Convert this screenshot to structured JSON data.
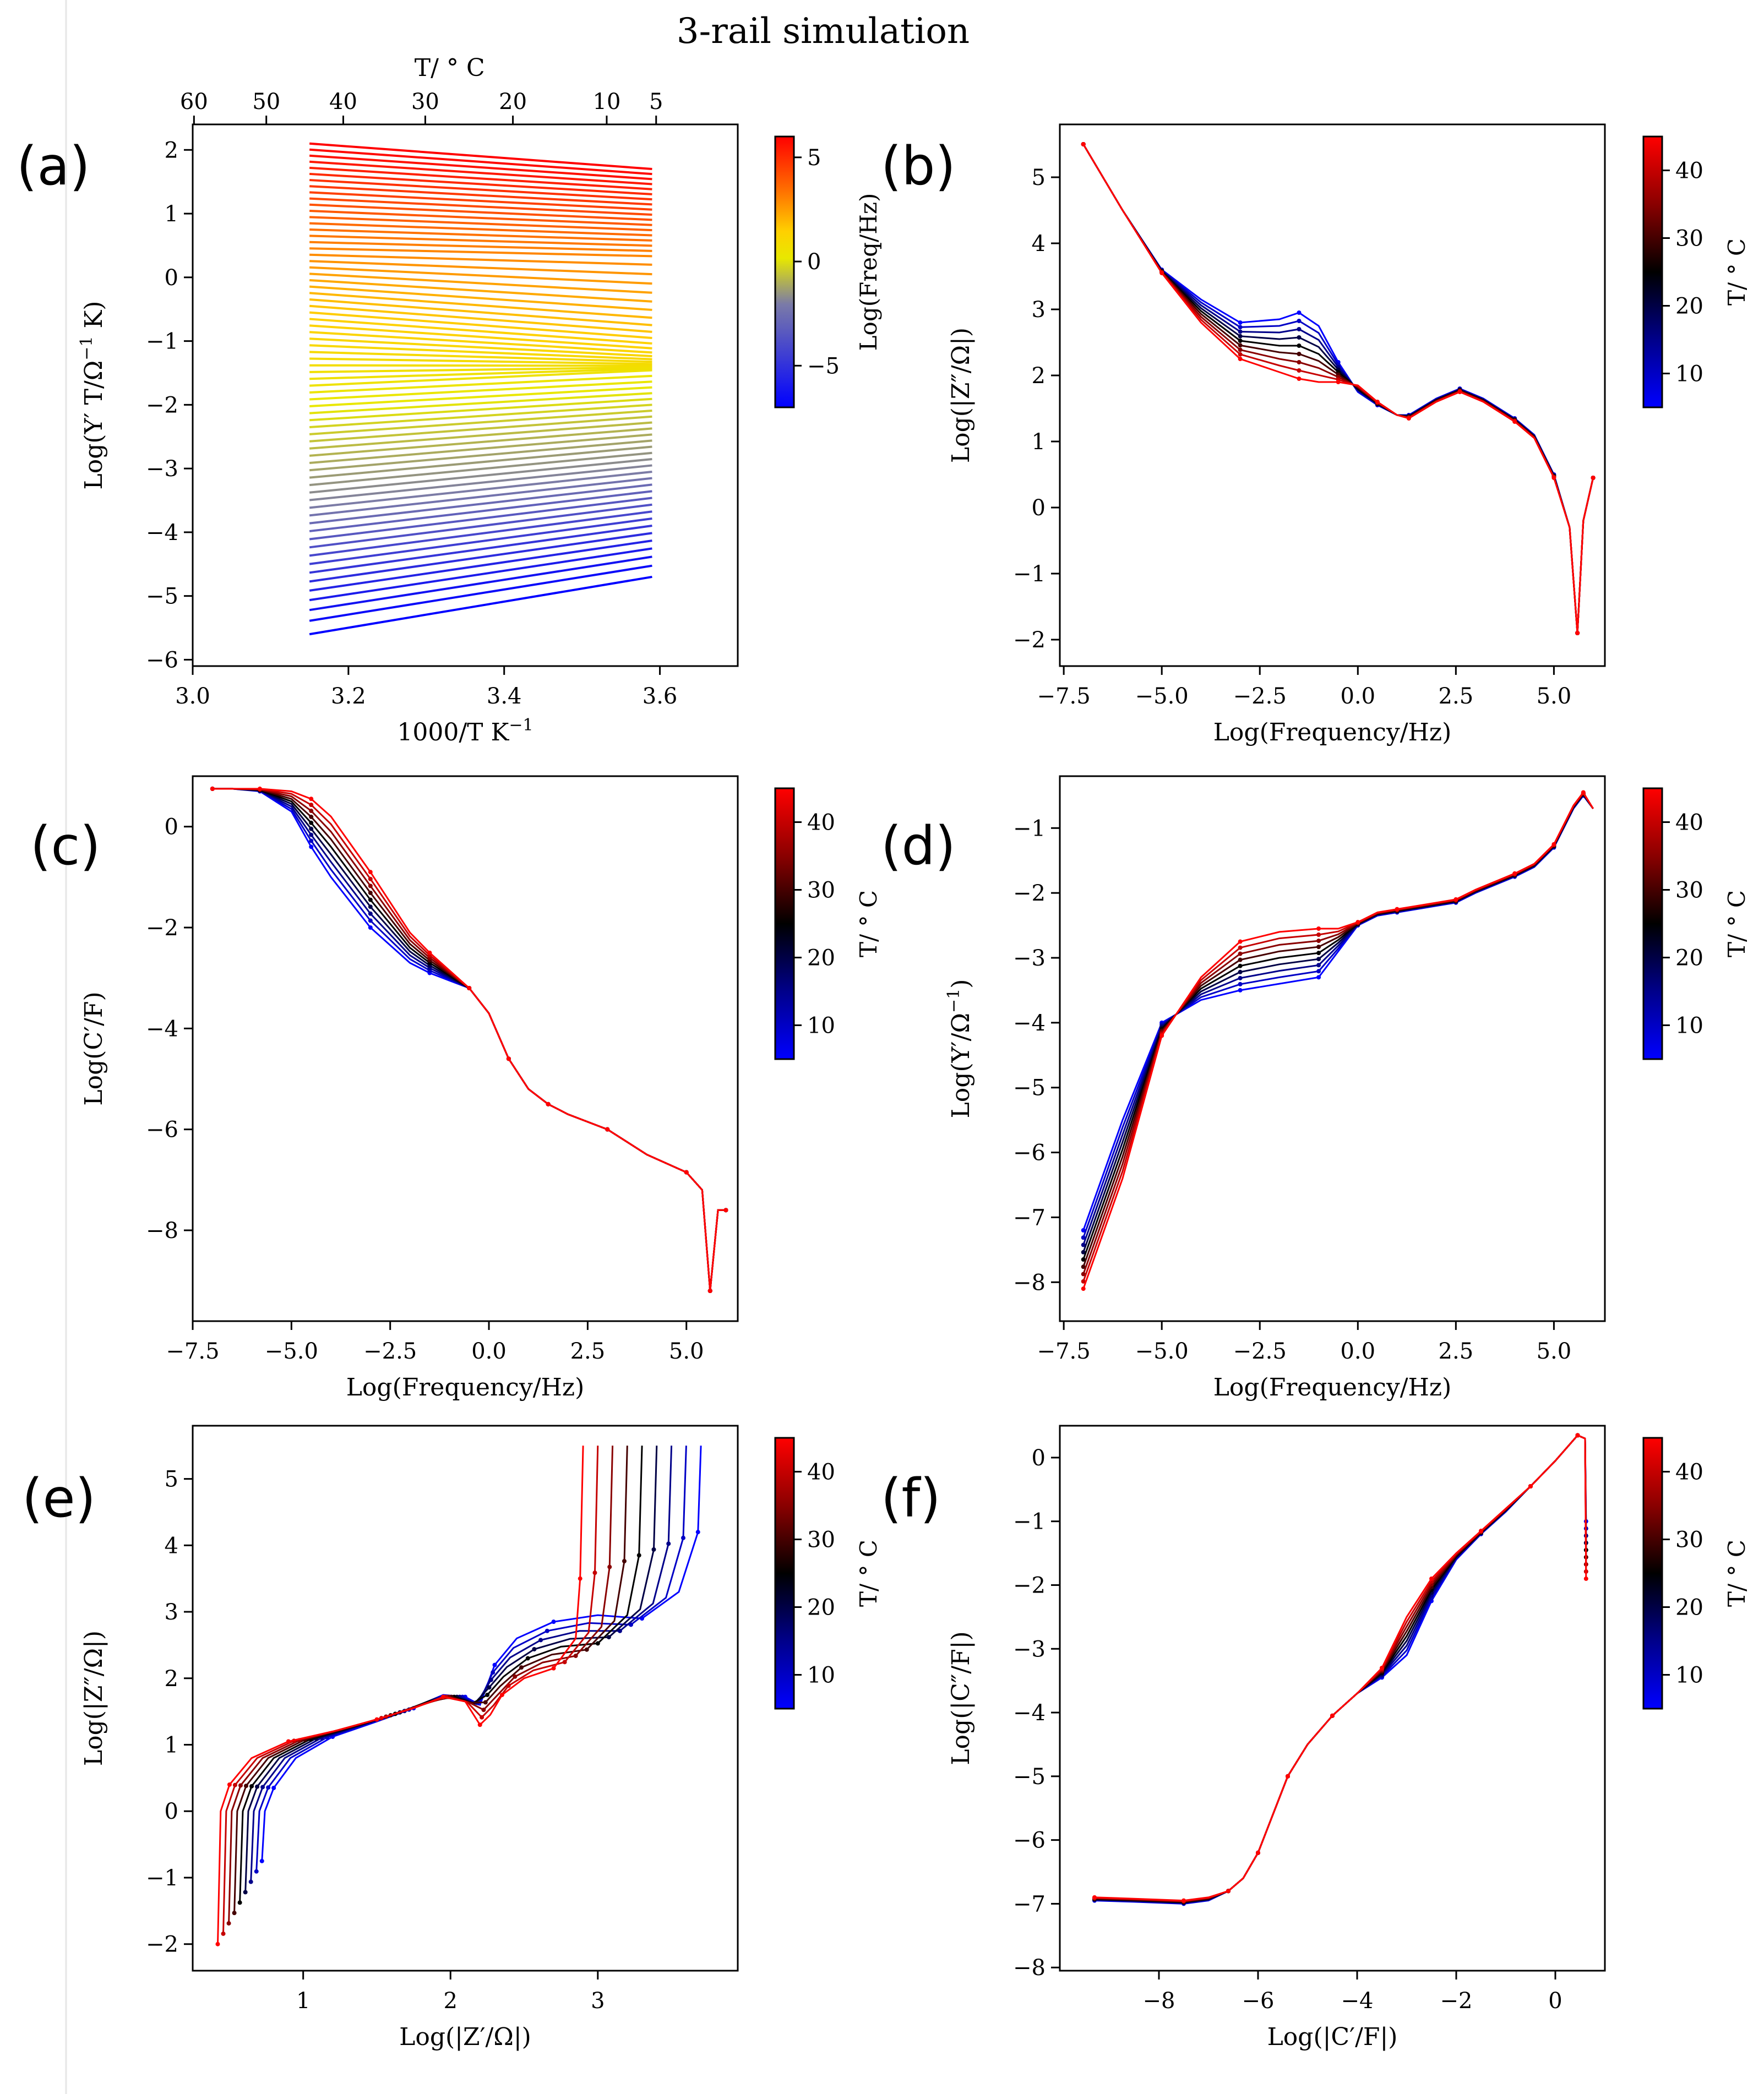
{
  "figure": {
    "title": "3-rail simulation",
    "colors": {
      "freq_scale": [
        "#0000ff",
        "#7a7aa8",
        "#e8e800",
        "#ffd000",
        "#ff7000",
        "#ff0000"
      ],
      "temp_scale": [
        "#0000ff",
        "#00008a",
        "#000000",
        "#8a0000",
        "#ff0000"
      ],
      "axis": "#000000"
    }
  },
  "chart_data": [
    {
      "id": "a",
      "panel_label": "(a)",
      "type": "line",
      "title": "",
      "xlabel": "1000/T K",
      "xlabel_sup": "−1",
      "ylabel": "Log(Y′ T/Ω",
      "ylabel_sup": "−1",
      "ylabel_tail": " K)",
      "top_xlabel": "T/ ° C",
      "xlim": [
        3.0,
        3.7
      ],
      "ylim": [
        -6.1,
        2.4
      ],
      "xticks": [
        3.0,
        3.2,
        3.4,
        3.6
      ],
      "xtick_labels": [
        "3.0",
        "3.2",
        "3.4",
        "3.6"
      ],
      "yticks": [
        -6,
        -5,
        -4,
        -3,
        -2,
        -1,
        0,
        1,
        2
      ],
      "ytick_labels": [
        "−6",
        "−5",
        "−4",
        "−3",
        "−2",
        "−1",
        "0",
        "1",
        "2"
      ],
      "top_ticks_celsius": [
        60,
        50,
        40,
        30,
        20,
        10,
        5
      ],
      "top_tick_labels": [
        "60",
        "50",
        "40",
        "30",
        "20",
        "10",
        "5"
      ],
      "x_range": [
        3.15,
        3.59
      ],
      "series_summary": "Arrhenius lines, one per frequency from Log(Freq/Hz) = −7 to 6; low frequency: y from −5.6 to −4.7; high frequency: y from 2.1 to 1.7",
      "colorbar": {
        "label": "Log(Freq/Hz)",
        "range": [
          -7,
          6
        ],
        "ticks": [
          -5,
          0,
          5
        ],
        "tick_labels": [
          "−5",
          "0",
          "5"
        ],
        "scale": "freq"
      }
    },
    {
      "id": "b",
      "panel_label": "(b)",
      "type": "line",
      "xlabel": "Log(Frequency/Hz)",
      "ylabel": "Log(|Z″/Ω|)",
      "xlim": [
        -7.6,
        6.3
      ],
      "ylim": [
        -2.4,
        5.8
      ],
      "xticks": [
        -7.5,
        -5.0,
        -2.5,
        0.0,
        2.5,
        5.0
      ],
      "xtick_labels": [
        "−7.5",
        "−5.0",
        "−2.5",
        "0.0",
        "2.5",
        "5.0"
      ],
      "yticks": [
        -2,
        -1,
        0,
        1,
        2,
        3,
        4,
        5
      ],
      "ytick_labels": [
        "−2",
        "−1",
        "0",
        "1",
        "2",
        "3",
        "4",
        "5"
      ],
      "x": [
        -7,
        -6,
        -5,
        -4,
        -3,
        -2,
        -1.5,
        -1,
        -0.5,
        0,
        0.5,
        1,
        1.3,
        2,
        2.6,
        3.2,
        4,
        4.5,
        5,
        5.4,
        5.6,
        5.75,
        6
      ],
      "series_low_T": [
        5.5,
        4.5,
        3.6,
        3.15,
        2.8,
        2.85,
        2.95,
        2.75,
        2.2,
        1.75,
        1.55,
        1.4,
        1.4,
        1.65,
        1.8,
        1.65,
        1.35,
        1.1,
        0.5,
        -0.3,
        -1.9,
        -0.2,
        0.45
      ],
      "series_high_T": [
        5.5,
        4.5,
        3.55,
        2.8,
        2.25,
        2.05,
        1.95,
        1.9,
        1.9,
        1.85,
        1.6,
        1.4,
        1.35,
        1.6,
        1.75,
        1.6,
        1.3,
        1.05,
        0.45,
        -0.3,
        -1.9,
        -0.2,
        0.45
      ],
      "colorbar": {
        "label": "T/ ° C",
        "range": [
          5,
          45
        ],
        "ticks": [
          10,
          20,
          30,
          40
        ],
        "tick_labels": [
          "10",
          "20",
          "30",
          "40"
        ],
        "scale": "temp"
      }
    },
    {
      "id": "c",
      "panel_label": "(c)",
      "type": "line",
      "xlabel": "Log(Frequency/Hz)",
      "ylabel": "Log(C′/F)",
      "xlim": [
        -7.5,
        6.3
      ],
      "ylim": [
        -9.8,
        1.0
      ],
      "xticks": [
        -7.5,
        -5.0,
        -2.5,
        0.0,
        2.5,
        5.0
      ],
      "xtick_labels": [
        "−7.5",
        "−5.0",
        "−2.5",
        "0.0",
        "2.5",
        "5.0"
      ],
      "yticks": [
        -8,
        -6,
        -4,
        -2,
        0
      ],
      "ytick_labels": [
        "−8",
        "−6",
        "−4",
        "−2",
        "0"
      ],
      "x": [
        -7,
        -6.5,
        -5.8,
        -5,
        -4.5,
        -4,
        -3,
        -2,
        -1.5,
        -1,
        -0.5,
        0,
        0.5,
        1,
        1.5,
        2,
        3,
        4,
        5,
        5.4,
        5.6,
        5.8,
        6
      ],
      "series_low_T": [
        0.75,
        0.75,
        0.7,
        0.3,
        -0.4,
        -1.0,
        -2.0,
        -2.7,
        -2.9,
        -3.05,
        -3.2,
        -3.7,
        -4.6,
        -5.2,
        -5.5,
        -5.7,
        -6.0,
        -6.5,
        -6.85,
        -7.2,
        -9.2,
        -7.6,
        -7.6
      ],
      "series_high_T": [
        0.75,
        0.75,
        0.75,
        0.7,
        0.55,
        0.2,
        -0.9,
        -2.1,
        -2.5,
        -2.85,
        -3.2,
        -3.7,
        -4.6,
        -5.2,
        -5.5,
        -5.7,
        -6.0,
        -6.5,
        -6.85,
        -7.2,
        -9.2,
        -7.6,
        -7.6
      ],
      "colorbar": {
        "label": "T/ ° C",
        "range": [
          5,
          45
        ],
        "ticks": [
          10,
          20,
          30,
          40
        ],
        "tick_labels": [
          "10",
          "20",
          "30",
          "40"
        ],
        "scale": "temp"
      }
    },
    {
      "id": "d",
      "panel_label": "(d)",
      "type": "line",
      "xlabel": "Log(Frequency/Hz)",
      "ylabel": "Log(Y′/Ω",
      "ylabel_sup": "−1",
      "ylabel_tail": ")",
      "xlim": [
        -7.6,
        6.3
      ],
      "ylim": [
        -8.6,
        -0.2
      ],
      "xticks": [
        -7.5,
        -5.0,
        -2.5,
        0.0,
        2.5,
        5.0
      ],
      "xtick_labels": [
        "−7.5",
        "−5.0",
        "−2.5",
        "0.0",
        "2.5",
        "5.0"
      ],
      "yticks": [
        -8,
        -7,
        -6,
        -5,
        -4,
        -3,
        -2,
        -1
      ],
      "ytick_labels": [
        "−8",
        "−7",
        "−6",
        "−5",
        "−4",
        "−3",
        "−2",
        "−1"
      ],
      "x": [
        -7,
        -6,
        -5,
        -4,
        -3,
        -2,
        -1,
        -0.5,
        0,
        0.5,
        1,
        2,
        2.5,
        3,
        4,
        4.5,
        5,
        5.5,
        5.75,
        6
      ],
      "series_low_T": [
        -7.2,
        -5.5,
        -4.0,
        -3.65,
        -3.5,
        -3.4,
        -3.3,
        -2.9,
        -2.5,
        -2.35,
        -2.3,
        -2.2,
        -2.15,
        -2.0,
        -1.75,
        -1.6,
        -1.3,
        -0.7,
        -0.5,
        -0.7
      ],
      "series_high_T": [
        -8.1,
        -6.4,
        -4.2,
        -3.3,
        -2.75,
        -2.6,
        -2.55,
        -2.55,
        -2.45,
        -2.3,
        -2.25,
        -2.15,
        -2.1,
        -1.95,
        -1.7,
        -1.55,
        -1.25,
        -0.65,
        -0.45,
        -0.7
      ],
      "colorbar": {
        "label": "T/ ° C",
        "range": [
          5,
          45
        ],
        "ticks": [
          10,
          20,
          30,
          40
        ],
        "tick_labels": [
          "10",
          "20",
          "30",
          "40"
        ],
        "scale": "temp"
      }
    },
    {
      "id": "e",
      "panel_label": "(e)",
      "type": "line",
      "xlabel": "Log(|Z′/Ω|)",
      "ylabel": "Log(|Z″/Ω|)",
      "xlim": [
        0.25,
        3.95
      ],
      "ylim": [
        -2.4,
        5.8
      ],
      "xticks": [
        1,
        2,
        3
      ],
      "xtick_labels": [
        "1",
        "2",
        "3"
      ],
      "yticks": [
        -2,
        -1,
        0,
        1,
        2,
        3,
        4,
        5
      ],
      "ytick_labels": [
        "−2",
        "−1",
        "0",
        "1",
        "2",
        "3",
        "4",
        "5"
      ],
      "x_high_T": [
        0.42,
        0.44,
        0.5,
        0.65,
        0.9,
        1.2,
        1.5,
        1.75,
        1.95,
        2.1,
        2.2,
        2.27,
        2.35,
        2.5,
        2.7,
        2.85,
        2.88,
        2.9
      ],
      "y_high_T": [
        -2.0,
        0.0,
        0.4,
        0.8,
        1.05,
        1.2,
        1.38,
        1.55,
        1.72,
        1.65,
        1.3,
        1.45,
        1.75,
        2.0,
        2.15,
        2.6,
        3.5,
        5.5
      ],
      "x_low_T": [
        0.72,
        0.74,
        0.8,
        0.95,
        1.2,
        1.5,
        1.75,
        1.95,
        2.1,
        2.2,
        2.3,
        2.45,
        2.7,
        3.0,
        3.3,
        3.55,
        3.68,
        3.7
      ],
      "y_low_T": [
        -0.75,
        0.0,
        0.35,
        0.8,
        1.12,
        1.35,
        1.55,
        1.75,
        1.72,
        1.6,
        2.2,
        2.6,
        2.85,
        2.95,
        2.9,
        3.3,
        4.2,
        5.5
      ],
      "colorbar": {
        "label": "T/ ° C",
        "range": [
          5,
          45
        ],
        "ticks": [
          10,
          20,
          30,
          40
        ],
        "tick_labels": [
          "10",
          "20",
          "30",
          "40"
        ],
        "scale": "temp"
      }
    },
    {
      "id": "f",
      "panel_label": "(f)",
      "type": "line",
      "xlabel": "Log(|C′/F|)",
      "ylabel": "Log(|C″/F|)",
      "xlim": [
        -10.0,
        1.0
      ],
      "ylim": [
        -8.05,
        0.5
      ],
      "xticks": [
        -8,
        -6,
        -4,
        -2,
        0
      ],
      "xtick_labels": [
        "−8",
        "−6",
        "−4",
        "−2",
        "0"
      ],
      "yticks": [
        -8,
        -7,
        -6,
        -5,
        -4,
        -3,
        -2,
        -1,
        0
      ],
      "ytick_labels": [
        "−8",
        "−7",
        "−6",
        "−5",
        "−4",
        "−3",
        "−2",
        "−1",
        "0"
      ],
      "x": [
        -9.3,
        -8.5,
        -7.5,
        -7.0,
        -6.6,
        -6.3,
        -6.0,
        -5.7,
        -5.4,
        -5.0,
        -4.5,
        -4.0,
        -3.5,
        -3.0,
        -2.5,
        -2.0,
        -1.5,
        -1.0,
        -0.5,
        0.0,
        0.45,
        0.6,
        0.62
      ],
      "series_low_T": [
        -6.95,
        -6.97,
        -7.0,
        -6.95,
        -6.8,
        -6.6,
        -6.2,
        -5.6,
        -5.0,
        -4.5,
        -4.05,
        -3.7,
        -3.45,
        -3.1,
        -2.25,
        -1.6,
        -1.2,
        -0.85,
        -0.45,
        -0.05,
        0.35,
        0.3,
        -1.0
      ],
      "series_high_T": [
        -6.9,
        -6.92,
        -6.95,
        -6.9,
        -6.8,
        -6.6,
        -6.2,
        -5.6,
        -5.0,
        -4.5,
        -4.05,
        -3.7,
        -3.3,
        -2.5,
        -1.9,
        -1.5,
        -1.15,
        -0.8,
        -0.45,
        -0.05,
        0.35,
        0.3,
        -1.9
      ],
      "colorbar": {
        "label": "T/ ° C",
        "range": [
          5,
          45
        ],
        "ticks": [
          10,
          20,
          30,
          40
        ],
        "tick_labels": [
          "10",
          "20",
          "30",
          "40"
        ],
        "scale": "temp"
      }
    }
  ]
}
